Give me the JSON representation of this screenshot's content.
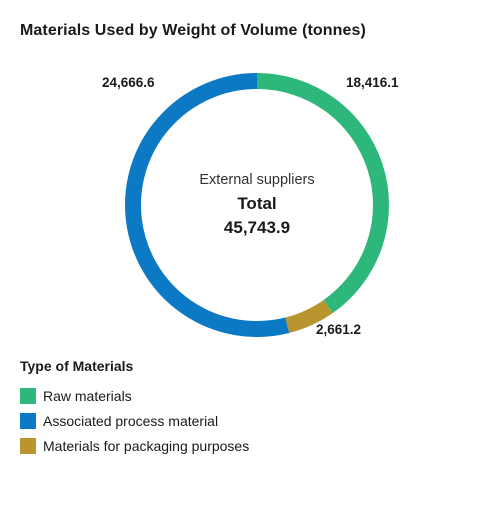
{
  "chart_data": {
    "type": "pie",
    "title": "Materials Used by Weight of Volume (tonnes)",
    "center": {
      "caption": "External suppliers",
      "total_label": "Total",
      "total_value": "45,743.9"
    },
    "slices": [
      {
        "name": "Raw materials",
        "value": 18416.1,
        "label": "18,416.1",
        "color": "#2db77b"
      },
      {
        "name": "Materials for packaging purposes",
        "value": 2661.2,
        "label": "2,661.2",
        "color": "#b8952e"
      },
      {
        "name": "Associated process material",
        "value": 24666.6,
        "label": "24,666.6",
        "color": "#0c79c4"
      }
    ],
    "legend": {
      "title": "Type of Materials",
      "position": "bottom-left",
      "items": [
        {
          "label": "Raw materials",
          "color": "#2db77b"
        },
        {
          "label": "Associated process material",
          "color": "#0c79c4"
        },
        {
          "label": "Materials for packaging purposes",
          "color": "#b8952e"
        }
      ]
    }
  }
}
